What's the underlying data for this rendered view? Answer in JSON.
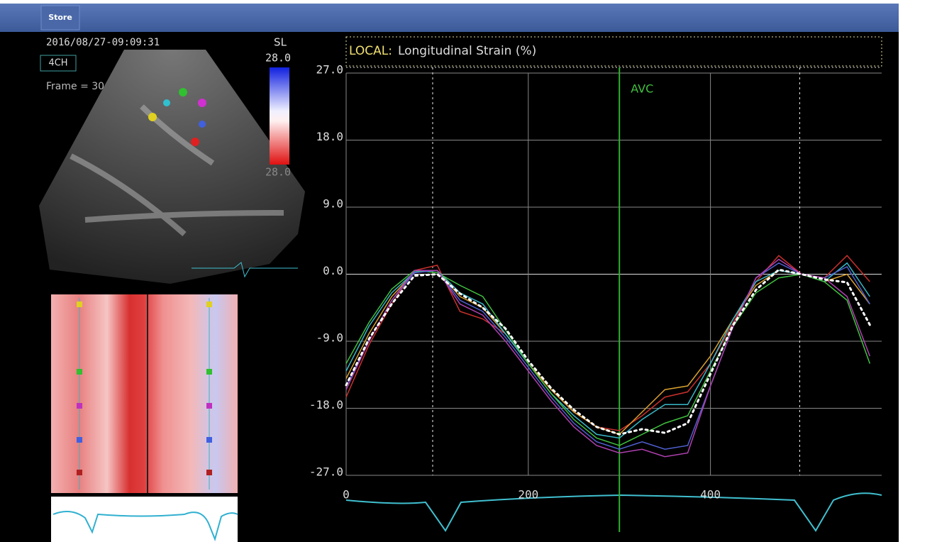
{
  "toolbar": {
    "button": "Store"
  },
  "image_panel": {
    "timestamp": "2016/08/27-09:09:31",
    "view": "4CH",
    "frame": "Frame = 30",
    "scale_name": "SL",
    "scale_max": "28.0",
    "scale_min": "28.0"
  },
  "chart_data": {
    "type": "line",
    "title_prefix": "LOCAL:",
    "title": "Longitudinal Strain (%)",
    "x": [
      0,
      25,
      50,
      75,
      100,
      125,
      150,
      175,
      200,
      225,
      250,
      275,
      300,
      325,
      350,
      375,
      400,
      425,
      450,
      475,
      500,
      525,
      550,
      575
    ],
    "series": [
      {
        "color": "#c8302c",
        "values": [
          -16.5,
          -9.5,
          -4,
          0.5,
          1.2,
          -5,
          -6,
          -8,
          -12,
          -15.5,
          -18.5,
          -20.5,
          -21,
          -19,
          -16.5,
          -15.8,
          -12,
          -6.5,
          -1,
          2.5,
          0,
          -0.5,
          2.5,
          -1
        ]
      },
      {
        "color": "#d9a030",
        "values": [
          -14,
          -8,
          -3,
          0.3,
          0.5,
          -3,
          -4.5,
          -8,
          -12,
          -15.5,
          -18.5,
          -20.5,
          -21.5,
          -18.5,
          -15.5,
          -15,
          -11,
          -6,
          -1.5,
          0.5,
          0,
          -1,
          0,
          -4
        ]
      },
      {
        "color": "#38b8c8",
        "values": [
          -13,
          -7,
          -2.5,
          0.3,
          0.5,
          -2.5,
          -4,
          -8,
          -12,
          -16,
          -19,
          -21.5,
          -22,
          -19.5,
          -17.5,
          -17.5,
          -12,
          -6,
          -1,
          0.5,
          0,
          -1,
          1.5,
          -3
        ]
      },
      {
        "color": "#40c040",
        "values": [
          -12,
          -6.5,
          -2,
          0.5,
          0.2,
          -1.5,
          -3,
          -7.5,
          -12,
          -16,
          -19.5,
          -22,
          -23,
          -21.5,
          -20,
          -19,
          -13,
          -7,
          -2.5,
          -0.5,
          0,
          -1,
          -3.5,
          -12
        ]
      },
      {
        "color": "#5060d0",
        "values": [
          -15,
          -9,
          -3.5,
          0.2,
          0.5,
          -3.5,
          -5,
          -8.5,
          -12.5,
          -16.5,
          -20,
          -22.5,
          -23.5,
          -22.5,
          -23.5,
          -23,
          -15,
          -7,
          -0.5,
          1.5,
          0,
          -0.5,
          1,
          -4
        ]
      },
      {
        "color": "#b040b0",
        "values": [
          -15.5,
          -9,
          -3.5,
          0.5,
          0.5,
          -4,
          -5.5,
          -9,
          -13,
          -17,
          -20.5,
          -23,
          -24,
          -23.5,
          -24.5,
          -24,
          -15,
          -7,
          -0.5,
          2,
          0,
          -0.5,
          -3,
          -11
        ]
      },
      {
        "color": "#ffffff",
        "dotted": true,
        "values": [
          -14.9,
          -8.7,
          -4,
          -0.2,
          0,
          -2.6,
          -4.5,
          -7.3,
          -11.6,
          -15.3,
          -18.2,
          -20.5,
          -21.5,
          -20.8,
          -21.3,
          -20,
          -13.4,
          -6.8,
          -2.1,
          0.6,
          0,
          -0.7,
          -1.1,
          -6.8
        ]
      }
    ],
    "xlim": [
      0,
      588
    ],
    "xticks": [
      0,
      200,
      400
    ],
    "ylim": [
      -27,
      27
    ],
    "yticks": [
      {
        "value": 27,
        "label": "27.0"
      },
      {
        "value": 18,
        "label": "18.0"
      },
      {
        "value": 9,
        "label": "9.0"
      },
      {
        "value": 0,
        "label": "0.0"
      },
      {
        "value": -9,
        "label": "-9.0"
      },
      {
        "value": -18,
        "label": "-18.0"
      },
      {
        "value": -27,
        "label": "-27.0"
      }
    ],
    "grid": true,
    "event_lines": [
      95,
      498
    ],
    "annotation": {
      "text": "AVC",
      "x": 300
    }
  }
}
